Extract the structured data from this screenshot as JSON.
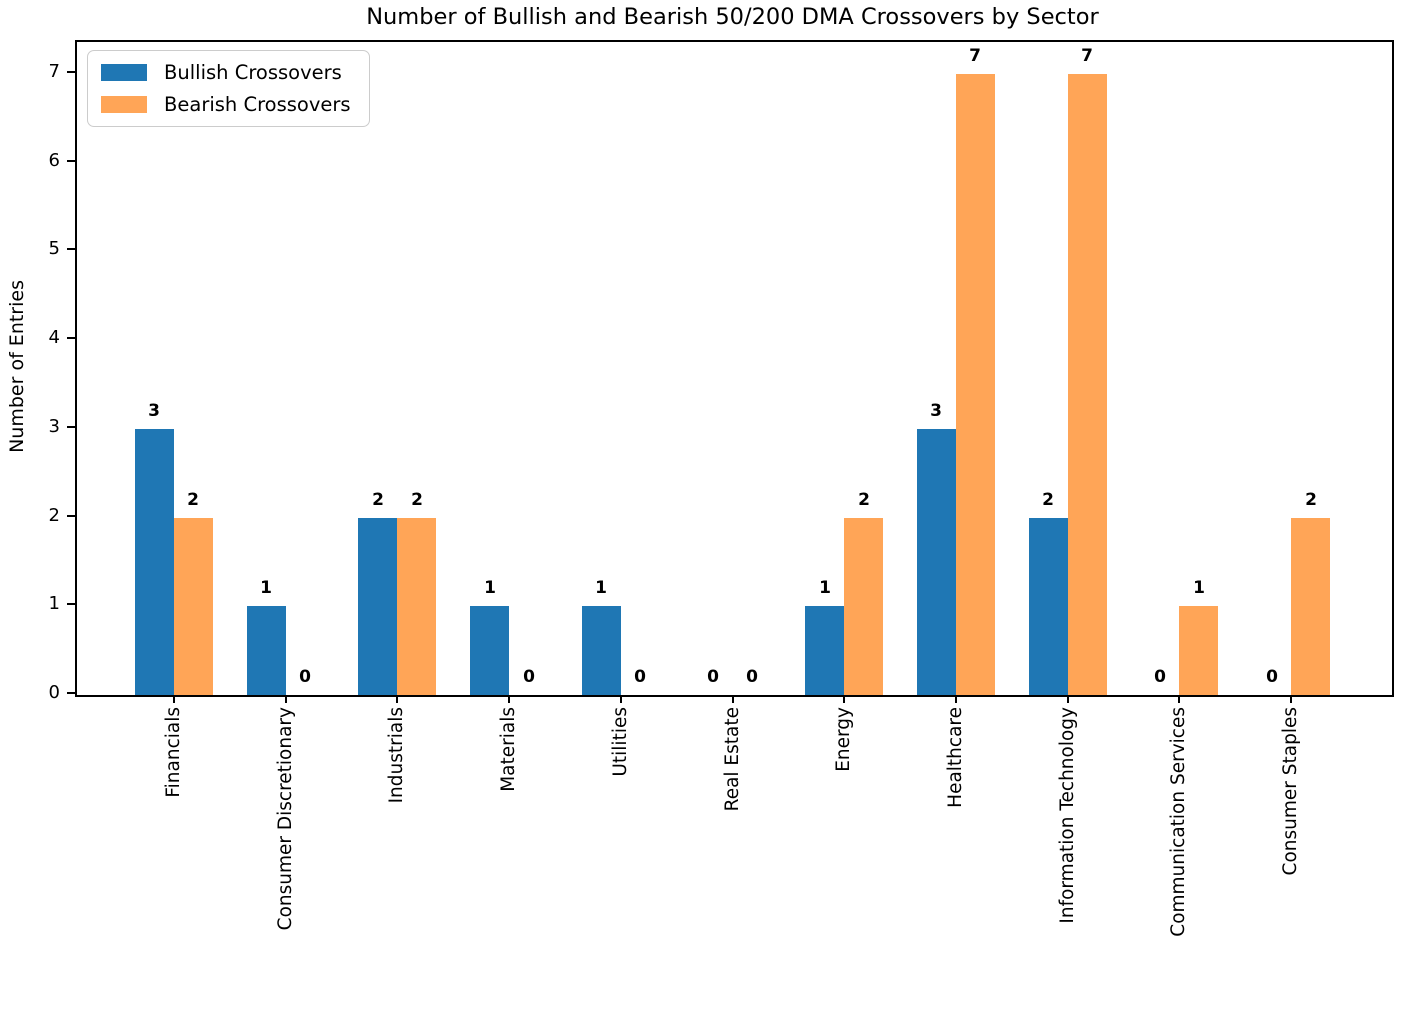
{
  "chart_data": {
    "type": "bar",
    "title": "Number of Bullish and Bearish 50/200 DMA Crossovers by Sector",
    "xlabel": "",
    "ylabel": "Number of Entries",
    "categories": [
      "Financials",
      "Consumer Discretionary",
      "Industrials",
      "Materials",
      "Utilities",
      "Real Estate",
      "Energy",
      "Healthcare",
      "Information Technology",
      "Communication Services",
      "Consumer Staples"
    ],
    "series": [
      {
        "name": "Bullish Crossovers",
        "color": "#1f77b4",
        "values": [
          3,
          1,
          2,
          1,
          1,
          0,
          1,
          3,
          2,
          0,
          0
        ]
      },
      {
        "name": "Bearish Crossovers",
        "color": "#ffa557",
        "values": [
          2,
          0,
          2,
          0,
          0,
          0,
          2,
          7,
          7,
          1,
          2
        ]
      }
    ],
    "yticks": [
      0,
      1,
      2,
      3,
      4,
      5,
      6,
      7
    ],
    "ylim": [
      0,
      7.36
    ],
    "grid": false,
    "legend_position": "upper-left",
    "bar_value_labels": true,
    "x_tick_label_rotation_deg": 90
  }
}
